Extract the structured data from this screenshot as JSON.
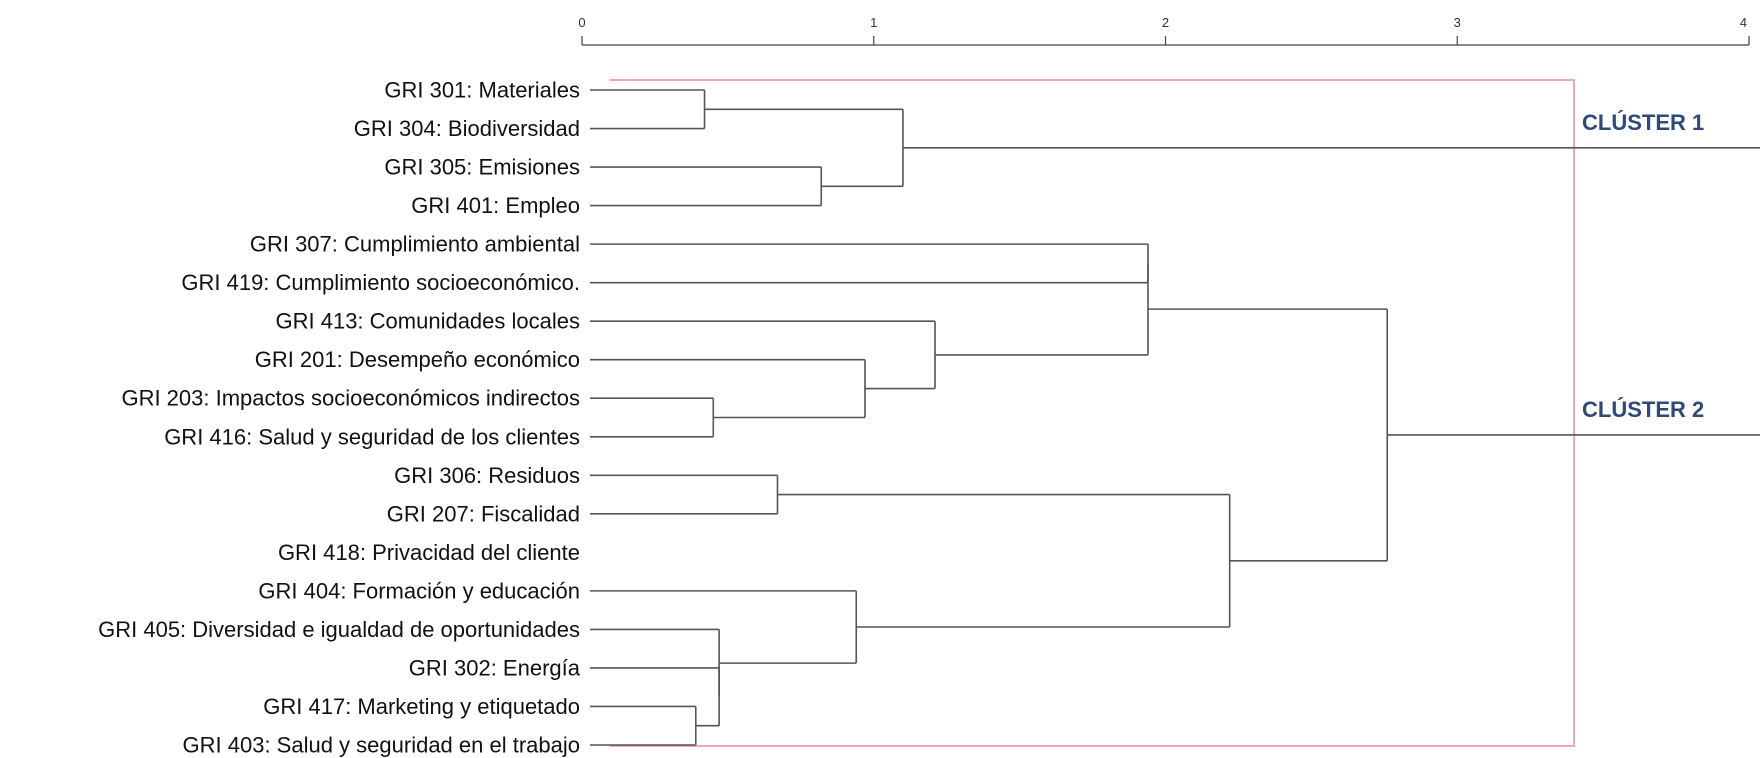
{
  "chart_data": {
    "type": "dendrogram",
    "orientation": "horizontal",
    "x_axis": {
      "ticks": [
        0,
        1,
        2,
        3,
        4
      ],
      "range": [
        0,
        4
      ],
      "position": "top"
    },
    "leaves": [
      {
        "id": "L0",
        "label": "GRI 301: Materiales"
      },
      {
        "id": "L1",
        "label": "GRI 304: Biodiversidad"
      },
      {
        "id": "L2",
        "label": "GRI 305: Emisiones"
      },
      {
        "id": "L3",
        "label": "GRI 401: Empleo"
      },
      {
        "id": "L4",
        "label": "GRI 307: Cumplimiento ambiental"
      },
      {
        "id": "L5",
        "label": "GRI 419: Cumplimiento socioeconómico."
      },
      {
        "id": "L6",
        "label": "GRI 413: Comunidades locales"
      },
      {
        "id": "L7",
        "label": "GRI 201: Desempeño económico"
      },
      {
        "id": "L8",
        "label": "GRI 203: Impactos socioeconómicos indirectos"
      },
      {
        "id": "L9",
        "label": "GRI 416: Salud y seguridad de los clientes"
      },
      {
        "id": "L10",
        "label": "GRI 306: Residuos"
      },
      {
        "id": "L11",
        "label": "GRI 207: Fiscalidad"
      },
      {
        "id": "L12",
        "label": "GRI 418: Privacidad del cliente"
      },
      {
        "id": "L13",
        "label": "GRI 404: Formación y educación"
      },
      {
        "id": "L14",
        "label": "GRI 405: Diversidad e igualdad de oportunidades"
      },
      {
        "id": "L15",
        "label": "GRI 302: Energía"
      },
      {
        "id": "L16",
        "label": "GRI 417: Marketing y etiquetado"
      },
      {
        "id": "L17",
        "label": "GRI 403: Salud y seguridad en el trabajo"
      }
    ],
    "merges": [
      {
        "id": "M1",
        "children": [
          "L0",
          "L1"
        ],
        "height": 0.42
      },
      {
        "id": "M2",
        "children": [
          "L2",
          "L3"
        ],
        "height": 0.82
      },
      {
        "id": "M3",
        "children": [
          "M1",
          "M2"
        ],
        "height": 1.1
      },
      {
        "id": "M4",
        "children": [
          "L4",
          "L5"
        ],
        "height": 1.94
      },
      {
        "id": "M5",
        "children": [
          "L8",
          "L9"
        ],
        "height": 0.45
      },
      {
        "id": "M6",
        "children": [
          "L7",
          "M5"
        ],
        "height": 0.97
      },
      {
        "id": "M7",
        "children": [
          "L6",
          "M6"
        ],
        "height": 1.21
      },
      {
        "id": "M8",
        "children": [
          "M4",
          "M7"
        ],
        "height": 1.94
      },
      {
        "id": "M9",
        "children": [
          "L10",
          "L11"
        ],
        "height": 0.67
      },
      {
        "id": "M10",
        "children": [
          "L16",
          "L17"
        ],
        "height": 0.39
      },
      {
        "id": "M11",
        "children": [
          "L15",
          "M10"
        ],
        "height": 0.47
      },
      {
        "id": "M12",
        "children": [
          "L14",
          "M11"
        ],
        "height": 0.47
      },
      {
        "id": "M13",
        "children": [
          "L13",
          "M12"
        ],
        "height": 0.94
      },
      {
        "id": "M14",
        "children": [
          "M9",
          "M13"
        ],
        "height": 2.22
      },
      {
        "id": "M15",
        "children": [
          "M8",
          "M14"
        ],
        "height": 2.76
      }
    ],
    "clusters": [
      {
        "label": "CLÚSTER 1",
        "root": "M3",
        "color": "#2f4a7a"
      },
      {
        "label": "CLÚSTER 2",
        "root": "M15",
        "color": "#2f4a7a"
      }
    ],
    "cut_box_color": "#f0a6b4",
    "link_color": "#555555"
  }
}
